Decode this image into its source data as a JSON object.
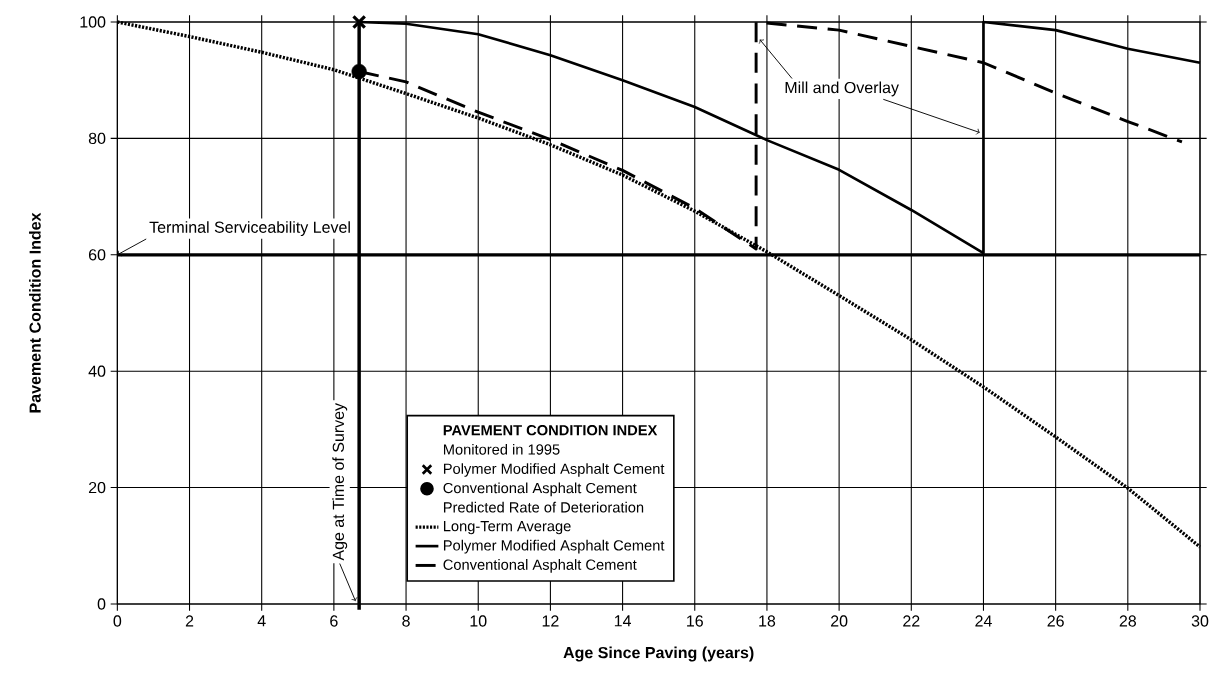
{
  "chart_data": {
    "type": "line",
    "xlabel": "Age Since Paving (years)",
    "ylabel": "Pavement Condition Index",
    "legend_title": "PAVEMENT CONDITION INDEX",
    "series": [
      {
        "name": "Polymer Modified Asphalt Cement",
        "type": "scatter",
        "marker": "cross",
        "color": "#000000",
        "x": [
          6.7
        ],
        "values": [
          100
        ]
      },
      {
        "name": "Conventional Asphalt Cement",
        "type": "scatter",
        "marker": "circle",
        "color": "#000000",
        "x": [
          6.7
        ],
        "values": [
          91.5
        ]
      },
      {
        "name": "Long-Term Average",
        "line_style": "dotted",
        "color": "#000000",
        "x": [
          0,
          2,
          4,
          6,
          8,
          10,
          12,
          14,
          16,
          18,
          20,
          22,
          24,
          26,
          28,
          30
        ],
        "values": [
          100,
          97.5,
          94.8,
          91.8,
          87.7,
          83.5,
          78.9,
          73.7,
          67.5,
          60.5,
          53,
          45.4,
          37.3,
          28.7,
          19.9,
          9.8
        ]
      },
      {
        "name": "Polymer Modified Asphalt Cement",
        "line_style": "solid",
        "color": "#000000",
        "x": [
          6.7,
          8,
          10,
          12,
          14,
          16,
          18,
          20,
          22,
          24,
          24,
          26,
          28,
          30
        ],
        "values": [
          100,
          99.7,
          97.9,
          94.3,
          90.0,
          85.4,
          79.7,
          74.6,
          67.7,
          60.3,
          100,
          98.6,
          95.4,
          93.0
        ]
      },
      {
        "name": "Conventional Asphalt Cement",
        "line_style": "dashed",
        "color": "#000000",
        "x": [
          6.7,
          8,
          10,
          12,
          14,
          16,
          17.7,
          17.7,
          20,
          22,
          24,
          26,
          28,
          29.5
        ],
        "values": [
          91.5,
          89.7,
          84.5,
          79.8,
          74.5,
          68,
          61,
          100,
          98.6,
          95.8,
          93,
          87.8,
          82.9,
          79.4
        ]
      }
    ],
    "xlim": [
      0,
      30
    ],
    "xticks": [
      0,
      2,
      4,
      6,
      8,
      10,
      12,
      14,
      16,
      18,
      20,
      22,
      24,
      26,
      28,
      30
    ],
    "ylim": [
      0,
      100
    ],
    "yticks": [
      0,
      20,
      40,
      60,
      80,
      100
    ],
    "ref_lines": [
      {
        "axis": "y",
        "value": 60,
        "label": "Terminal Serviceability Level"
      },
      {
        "axis": "x",
        "value": 6.7,
        "label": "Age at Time of Survey"
      }
    ],
    "annotations": [
      "Monitored in 1995",
      "Predicted Rate of Deterioration",
      {
        "text": "Mill and Overlay",
        "x": 24,
        "y": 81
      }
    ],
    "grid": true,
    "legend": "bottom"
  }
}
